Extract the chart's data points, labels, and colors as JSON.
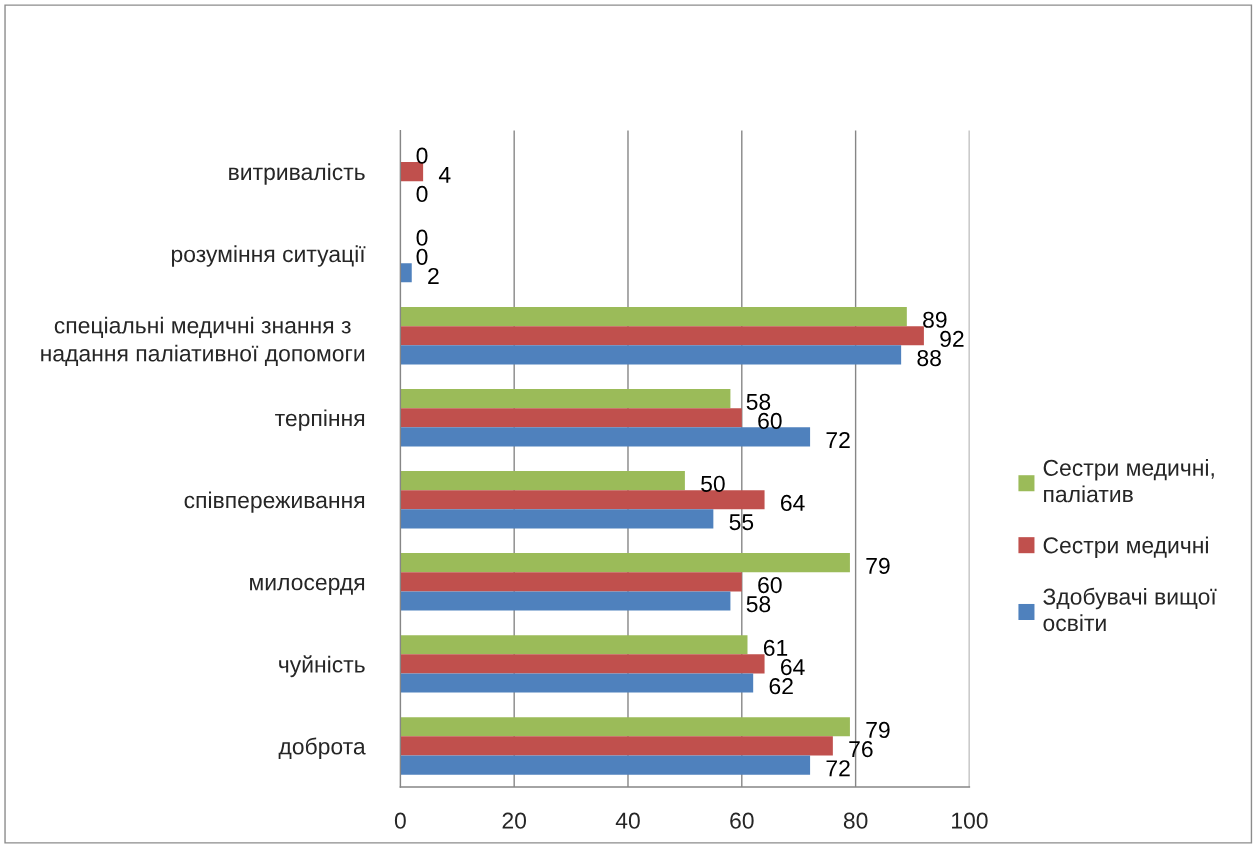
{
  "chart_data": {
    "type": "bar",
    "orientation": "horizontal",
    "categories": [
      "витривалість",
      "розуміння ситуації",
      "спеціальні медичні знання з\nнадання паліативної допомоги",
      "терпіння",
      "співпереживання",
      "милосердя",
      "чуйність",
      "доброта"
    ],
    "series": [
      {
        "name": "Здобувачі вищої\nосвіти",
        "color": "#4f81bd",
        "values": [
          0,
          2,
          88,
          72,
          55,
          58,
          62,
          72
        ]
      },
      {
        "name": "Сестри медичні",
        "color": "#c0504d",
        "values": [
          4,
          0,
          92,
          60,
          64,
          60,
          64,
          76
        ]
      },
      {
        "name": "Сестри медичні,\nпаліатив",
        "color": "#9bbb59",
        "values": [
          0,
          0,
          89,
          58,
          50,
          79,
          61,
          79
        ]
      }
    ],
    "xlim": [
      0,
      100
    ],
    "xticks": [
      0,
      20,
      40,
      60,
      80,
      100
    ],
    "grid": "x",
    "legend": "right",
    "data_labels": true
  }
}
